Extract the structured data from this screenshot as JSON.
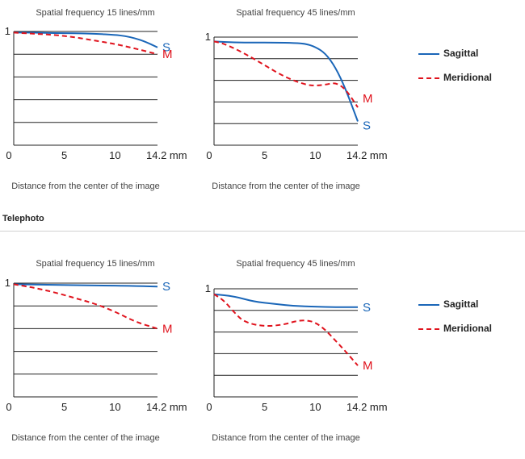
{
  "headings": {
    "telephoto": "Telephoto"
  },
  "legend": {
    "sagittal": "Sagittal",
    "meridional": "Meridional"
  },
  "colors": {
    "sagittal": "#1a66b8",
    "meridional": "#e0141e",
    "grid": "#222222"
  },
  "chart_data": [
    {
      "type": "line",
      "title": "Spatial frequency 15 lines/mm",
      "xlabel": "Distance from the center of the image",
      "xlim": [
        0,
        14.2
      ],
      "ylim": [
        0,
        1
      ],
      "xticks": [
        "0",
        "5",
        "10",
        "14.2 mm"
      ],
      "yticks": [
        "1"
      ],
      "grid": true,
      "series": [
        {
          "name": "S",
          "curve_label": "S",
          "x": [
            0,
            2,
            4,
            6,
            8,
            10,
            11,
            12,
            13,
            14.2
          ],
          "y": [
            0.99,
            0.99,
            0.985,
            0.985,
            0.98,
            0.97,
            0.96,
            0.94,
            0.91,
            0.86
          ]
        },
        {
          "name": "M",
          "curve_label": "M",
          "x": [
            0,
            2,
            4,
            6,
            8,
            10,
            12,
            14.2
          ],
          "y": [
            0.99,
            0.98,
            0.97,
            0.95,
            0.92,
            0.89,
            0.85,
            0.8
          ]
        }
      ]
    },
    {
      "type": "line",
      "title": "Spatial frequency 45 lines/mm",
      "xlabel": "Distance from the center of the image",
      "xlim": [
        0,
        14.2
      ],
      "ylim": [
        0,
        1
      ],
      "xticks": [
        "0",
        "5",
        "10",
        "14.2 mm"
      ],
      "yticks": [
        "1"
      ],
      "grid": true,
      "series": [
        {
          "name": "S",
          "curve_label": "S",
          "x": [
            0,
            2,
            4,
            6,
            8,
            9,
            10,
            11,
            12,
            13,
            14.2
          ],
          "y": [
            0.96,
            0.95,
            0.95,
            0.95,
            0.945,
            0.94,
            0.91,
            0.85,
            0.72,
            0.52,
            0.22
          ]
        },
        {
          "name": "M",
          "curve_label": "M",
          "x": [
            0,
            1,
            3,
            5,
            7,
            9,
            10,
            11,
            12,
            13,
            14.2
          ],
          "y": [
            0.96,
            0.94,
            0.85,
            0.74,
            0.63,
            0.56,
            0.55,
            0.56,
            0.58,
            0.52,
            0.35
          ]
        }
      ]
    },
    {
      "type": "line",
      "title": "Spatial frequency 15 lines/mm",
      "xlabel": "Distance from the center of the image",
      "xlim": [
        0,
        14.2
      ],
      "ylim": [
        0,
        1
      ],
      "xticks": [
        "0",
        "5",
        "10",
        "14.2 mm"
      ],
      "yticks": [
        "1"
      ],
      "grid": true,
      "series": [
        {
          "name": "S",
          "curve_label": "S",
          "x": [
            0,
            4,
            8,
            12,
            14.2
          ],
          "y": [
            0.99,
            0.985,
            0.98,
            0.975,
            0.97
          ]
        },
        {
          "name": "M",
          "curve_label": "M",
          "x": [
            0,
            2,
            4,
            6,
            8,
            10,
            12,
            14.2
          ],
          "y": [
            0.99,
            0.96,
            0.92,
            0.87,
            0.82,
            0.75,
            0.66,
            0.6
          ]
        }
      ]
    },
    {
      "type": "line",
      "title": "Spatial frequency 45 lines/mm",
      "xlabel": "Distance from the center of the image",
      "xlim": [
        0,
        14.2
      ],
      "ylim": [
        0,
        1
      ],
      "xticks": [
        "0",
        "5",
        "10",
        "14.2 mm"
      ],
      "yticks": [
        "1"
      ],
      "grid": true,
      "series": [
        {
          "name": "S",
          "curve_label": "S",
          "x": [
            0,
            2,
            4,
            6,
            8,
            10,
            12,
            14.2
          ],
          "y": [
            0.95,
            0.93,
            0.88,
            0.86,
            0.84,
            0.835,
            0.83,
            0.83
          ]
        },
        {
          "name": "M",
          "curve_label": "M",
          "x": [
            0,
            1,
            2,
            3,
            5,
            7,
            8,
            9,
            10,
            11,
            12,
            13,
            14.2
          ],
          "y": [
            0.95,
            0.89,
            0.78,
            0.69,
            0.65,
            0.67,
            0.7,
            0.71,
            0.69,
            0.62,
            0.52,
            0.42,
            0.29
          ]
        }
      ]
    }
  ]
}
